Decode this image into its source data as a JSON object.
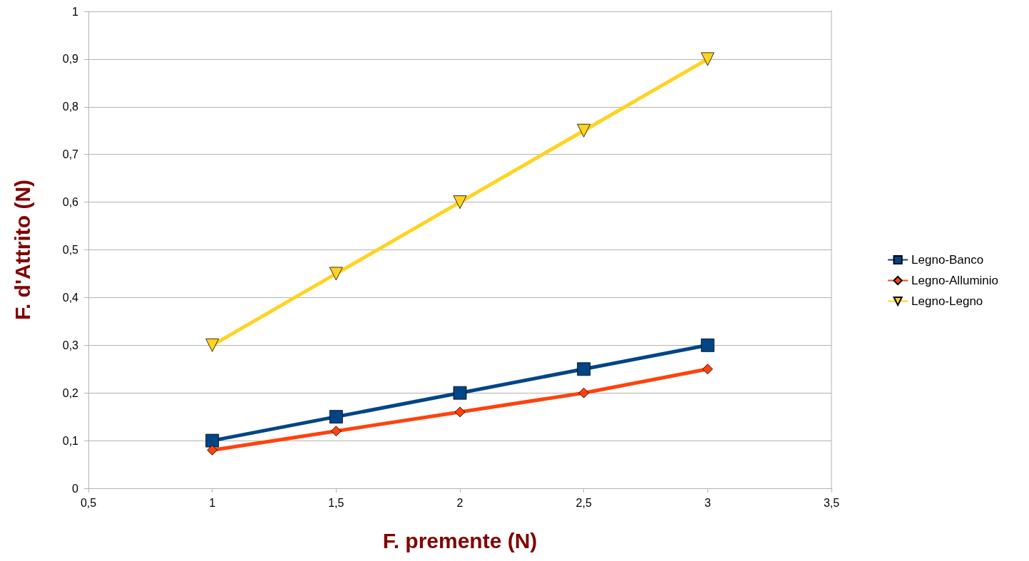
{
  "chart_data": {
    "type": "line",
    "xlabel": "F. premente (N)",
    "ylabel": "F. d'Attrito (N)",
    "x": [
      1,
      1.5,
      2,
      2.5,
      3
    ],
    "series": [
      {
        "name": "Legno-Banco",
        "color": "#004586",
        "marker": "square",
        "values": [
          0.1,
          0.15,
          0.2,
          0.25,
          0.3
        ]
      },
      {
        "name": "Legno-Alluminio",
        "color": "#ff420e",
        "marker": "diamond",
        "values": [
          0.08,
          0.12,
          0.16,
          0.2,
          0.25
        ]
      },
      {
        "name": "Legno-Legno",
        "color": "#ffd320",
        "marker": "triangle",
        "values": [
          0.3,
          0.45,
          0.6,
          0.75,
          0.9
        ]
      }
    ],
    "xlim": [
      0.5,
      3.5
    ],
    "xticks": [
      {
        "value": 0.5,
        "label": "0,5"
      },
      1,
      {
        "value": 1.5,
        "label": "1,5"
      },
      2,
      {
        "value": 2.5,
        "label": "2,5"
      },
      3,
      {
        "value": 3.5,
        "label": "3,5"
      }
    ],
    "ylim": [
      0,
      1
    ],
    "yticks": [
      0,
      {
        "value": 0.1,
        "label": "0,1"
      },
      {
        "value": 0.2,
        "label": "0,2"
      },
      {
        "value": 0.3,
        "label": "0,3"
      },
      {
        "value": 0.4,
        "label": "0,4"
      },
      {
        "value": 0.5,
        "label": "0,5"
      },
      {
        "value": 0.6,
        "label": "0,6"
      },
      {
        "value": 0.7,
        "label": "0,7"
      },
      {
        "value": 0.8,
        "label": "0,8"
      },
      {
        "value": 0.9,
        "label": "0,9"
      },
      1
    ],
    "grid": "y",
    "legend": "right",
    "line_style": "solid"
  }
}
